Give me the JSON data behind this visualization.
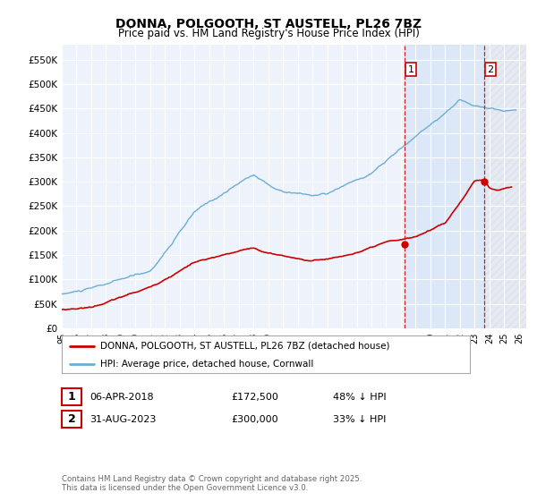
{
  "title": "DONNA, POLGOOTH, ST AUSTELL, PL26 7BZ",
  "subtitle": "Price paid vs. HM Land Registry's House Price Index (HPI)",
  "ylabel_ticks": [
    "£0",
    "£50K",
    "£100K",
    "£150K",
    "£200K",
    "£250K",
    "£300K",
    "£350K",
    "£400K",
    "£450K",
    "£500K",
    "£550K"
  ],
  "ytick_values": [
    0,
    50000,
    100000,
    150000,
    200000,
    250000,
    300000,
    350000,
    400000,
    450000,
    500000,
    550000
  ],
  "ylim": [
    0,
    580000
  ],
  "xlim_start": 1995.0,
  "xlim_end": 2026.5,
  "hpi_color": "#6baed6",
  "price_color": "#cc0000",
  "sale1_x": 2018.27,
  "sale1_y": 172500,
  "sale2_x": 2023.67,
  "sale2_y": 300000,
  "vline1_x": 2018.27,
  "vline2_x": 2023.67,
  "shade_color": "#ddeeff",
  "legend_label_red": "DONNA, POLGOOTH, ST AUSTELL, PL26 7BZ (detached house)",
  "legend_label_blue": "HPI: Average price, detached house, Cornwall",
  "table_row1": [
    "1",
    "06-APR-2018",
    "£172,500",
    "48% ↓ HPI"
  ],
  "table_row2": [
    "2",
    "31-AUG-2023",
    "£300,000",
    "33% ↓ HPI"
  ],
  "footer": "Contains HM Land Registry data © Crown copyright and database right 2025.\nThis data is licensed under the Open Government Licence v3.0.",
  "background_color": "#ffffff",
  "plot_bg_color": "#eef2fb"
}
